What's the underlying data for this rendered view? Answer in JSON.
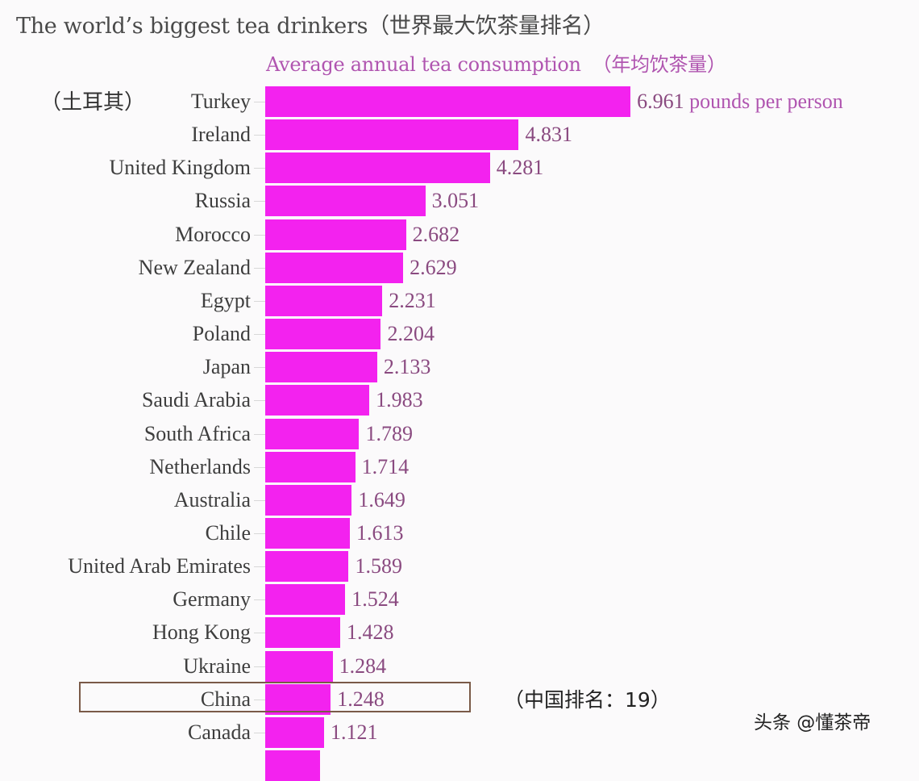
{
  "chart_data": {
    "type": "bar",
    "orientation": "horizontal",
    "title": "The world's biggest tea drinkers（世界最大饮茶量排名）",
    "subtitle": "Average annual tea consumption （年均饮茶量）",
    "xlabel": "",
    "ylabel": "",
    "unit": "pounds per person",
    "grid": false,
    "bar_color": "#f322ef",
    "categories": [
      "Turkey",
      "Ireland",
      "United Kingdom",
      "Russia",
      "Morocco",
      "New Zealand",
      "Egypt",
      "Poland",
      "Japan",
      "Saudi Arabia",
      "South Africa",
      "Netherlands",
      "Australia",
      "Chile",
      "United Arab Emirates",
      "Germany",
      "Hong Kong",
      "Ukraine",
      "China",
      "Canada"
    ],
    "values": [
      6.961,
      4.831,
      4.281,
      3.051,
      2.682,
      2.629,
      2.231,
      2.204,
      2.133,
      1.983,
      1.789,
      1.714,
      1.649,
      1.613,
      1.589,
      1.524,
      1.428,
      1.284,
      1.248,
      1.121
    ],
    "value_labels": [
      "6.961",
      "4.831",
      "4.281",
      "3.051",
      "2.682",
      "2.629",
      "2.231",
      "2.204",
      "2.133",
      "1.983",
      "1.789",
      "1.714",
      "1.649",
      "1.613",
      "1.589",
      "1.524",
      "1.428",
      "1.284",
      "1.248",
      "1.121"
    ],
    "annotations": [
      {
        "target": "Turkey",
        "text": "（土耳其）"
      },
      {
        "target": "China",
        "text": "（中国排名：19）",
        "highlighted": true
      }
    ]
  },
  "header": {
    "title": "The world’s biggest tea drinkers（世界最大饮茶量排名）",
    "subtitle_en": "Average annual tea consumption",
    "subtitle_cn": "（年均饮茶量）"
  },
  "annotations": {
    "turkey_cn": "（土耳其）",
    "first_unit": " pounds per person",
    "china_rank": "（中国排名：19）",
    "watermark": "头条 @懂茶帝"
  },
  "colors": {
    "bar": "#f322ef",
    "value_text": "#8a4a80",
    "subtitle": "#b055b0",
    "highlight_border": "#7a5a48"
  }
}
